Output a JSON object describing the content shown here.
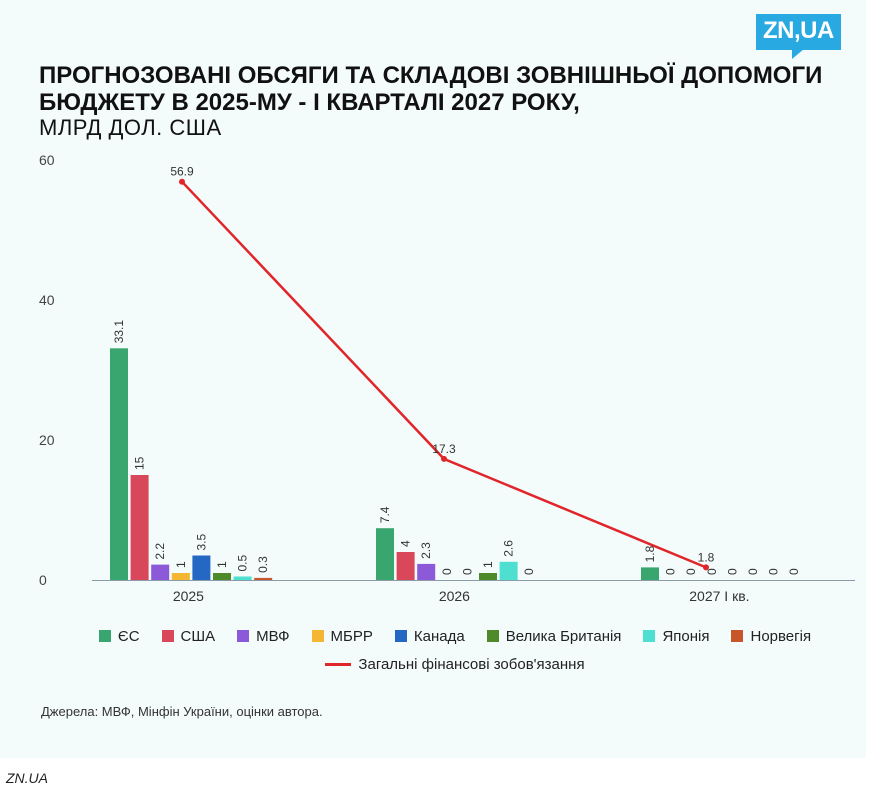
{
  "brand": {
    "logo_text": "ZN,UA",
    "footer_text": "ZN.UA"
  },
  "header": {
    "title": "ПРОГНОЗОВАНІ ОБСЯГИ ТА СКЛАДОВІ ЗОВНІШНЬОЇ ДОПОМОГИ БЮДЖЕТУ В 2025-МУ - І КВАРТАЛІ 2027 РОКУ,",
    "subtitle": "МЛРД ДОЛ. США"
  },
  "source": "Джерела: МВФ, Мінфін України, оцінки автора.",
  "chart_data": {
    "type": "bar",
    "title": "ПРОГНОЗОВАНІ ОБСЯГИ ТА СКЛАДОВІ ЗОВНІШНЬОЇ ДОПОМОГИ БЮДЖЕТУ В 2025-МУ - І КВАРТАЛІ 2027 РОКУ,",
    "subtitle": "МЛРД ДОЛ. США",
    "categories": [
      "2025",
      "2026",
      "2027 І кв."
    ],
    "ylim": [
      0,
      60
    ],
    "yticks": [
      0,
      20,
      40,
      60
    ],
    "grid": false,
    "legend_position": "bottom",
    "series": [
      {
        "name": "ЄС",
        "color": "#3aa66f",
        "values": [
          33.1,
          7.4,
          1.8
        ]
      },
      {
        "name": "США",
        "color": "#d9475a",
        "values": [
          15,
          4,
          0
        ]
      },
      {
        "name": "МВФ",
        "color": "#8c5ad9",
        "values": [
          2.2,
          2.3,
          0
        ]
      },
      {
        "name": "МБРР",
        "color": "#f5b731",
        "values": [
          1,
          0,
          0
        ]
      },
      {
        "name": "Канада",
        "color": "#2468c4",
        "values": [
          3.5,
          0,
          0
        ]
      },
      {
        "name": "Велика Британія",
        "color": "#4f8a2a",
        "values": [
          1,
          1,
          0
        ]
      },
      {
        "name": "Японія",
        "color": "#4de0d0",
        "values": [
          0.5,
          2.6,
          0
        ]
      },
      {
        "name": "Норвегія",
        "color": "#c7562a",
        "values": [
          0.3,
          0,
          0
        ]
      }
    ],
    "bar_labels": [
      [
        "33.1",
        "7.4",
        "1.8"
      ],
      [
        "15",
        "4",
        "0"
      ],
      [
        "2.2",
        "2.3",
        "0"
      ],
      [
        "1",
        "0",
        "0"
      ],
      [
        "3.5",
        "0",
        "0"
      ],
      [
        "1",
        "1",
        "0"
      ],
      [
        "0.5",
        "2.6",
        "0"
      ],
      [
        "0.3",
        "0",
        "0"
      ]
    ],
    "line": {
      "name": "Загальні фінансові зобов'язання",
      "color": "#e0262b",
      "values": [
        56.9,
        17.3,
        1.8
      ],
      "labels": [
        "56.9",
        "17.3",
        "1.8"
      ]
    }
  }
}
